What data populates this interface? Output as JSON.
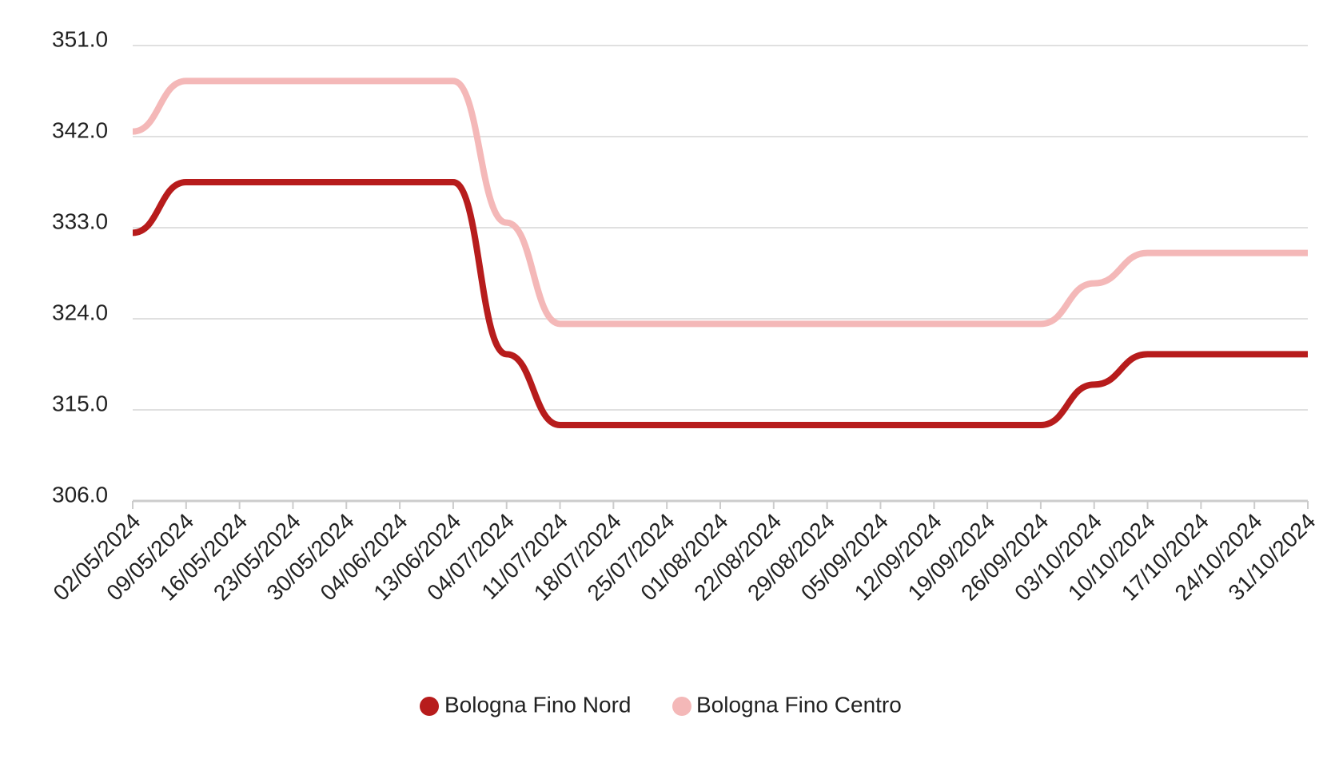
{
  "chart_data": {
    "type": "line",
    "categories": [
      "02/05/2024",
      "09/05/2024",
      "16/05/2024",
      "23/05/2024",
      "30/05/2024",
      "04/06/2024",
      "13/06/2024",
      "04/07/2024",
      "11/07/2024",
      "18/07/2024",
      "25/07/2024",
      "01/08/2024",
      "22/08/2024",
      "29/08/2024",
      "05/09/2024",
      "12/09/2024",
      "19/09/2024",
      "26/09/2024",
      "03/10/2024",
      "10/10/2024",
      "17/10/2024",
      "24/10/2024",
      "31/10/2024"
    ],
    "series": [
      {
        "name": "Bologna Fino Nord",
        "color": "#b71c1c",
        "values": [
          332.5,
          337.5,
          337.5,
          337.5,
          337.5,
          337.5,
          337.5,
          320.5,
          313.5,
          313.5,
          313.5,
          313.5,
          313.5,
          313.5,
          313.5,
          313.5,
          313.5,
          313.5,
          317.5,
          320.5,
          320.5,
          320.5,
          320.5
        ]
      },
      {
        "name": "Bologna Fino Centro",
        "color": "#f4b8b8",
        "values": [
          342.5,
          347.5,
          347.5,
          347.5,
          347.5,
          347.5,
          347.5,
          333.5,
          323.5,
          323.5,
          323.5,
          323.5,
          323.5,
          323.5,
          323.5,
          323.5,
          323.5,
          323.5,
          327.5,
          330.5,
          330.5,
          330.5,
          330.5
        ]
      }
    ],
    "ylim": [
      306,
      351
    ],
    "yticks": [
      {
        "value": 306,
        "label": "306.0"
      },
      {
        "value": 315,
        "label": "315.0"
      },
      {
        "value": 324,
        "label": "324.0"
      },
      {
        "value": 333,
        "label": "333.0"
      },
      {
        "value": 342,
        "label": "342.0"
      },
      {
        "value": 351,
        "label": "351.0"
      }
    ],
    "grid": true
  }
}
